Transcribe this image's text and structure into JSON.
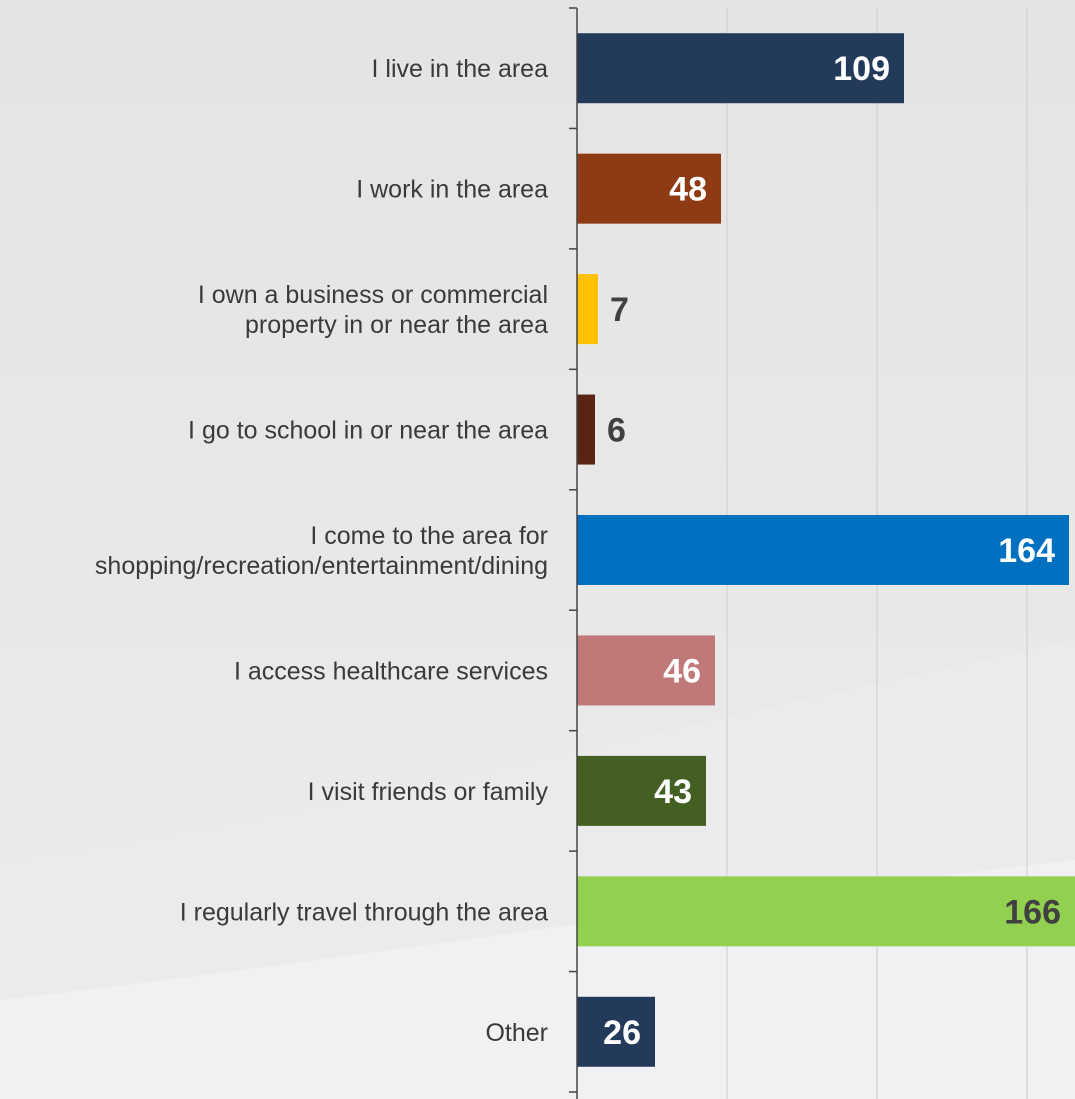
{
  "chart_data": {
    "type": "bar",
    "orientation": "horizontal",
    "categories": [
      [
        "I live in the area"
      ],
      [
        "I work in the area"
      ],
      [
        "I own a business or commercial",
        "property in or near the area"
      ],
      [
        "I go to school in or near the area"
      ],
      [
        "I come to the area for",
        "shopping/recreation/entertainment/dining"
      ],
      [
        "I access healthcare services"
      ],
      [
        "I visit friends or family"
      ],
      [
        "I regularly travel through the area"
      ],
      [
        "Other"
      ]
    ],
    "values": [
      109,
      48,
      7,
      6,
      164,
      46,
      43,
      166,
      26
    ],
    "bar_colors": [
      "#243a5a",
      "#8e3a12",
      "#ffc000",
      "#5a2412",
      "#0070c0",
      "#c07878",
      "#436022",
      "#92d050",
      "#243a5a"
    ],
    "label_colors": [
      "#ffffff",
      "#ffffff",
      "#404040",
      "#404040",
      "#ffffff",
      "#ffffff",
      "#ffffff",
      "#404040",
      "#ffffff"
    ],
    "label_position": [
      "inside",
      "inside",
      "outside",
      "outside",
      "inside",
      "inside",
      "inside",
      "inside",
      "inside"
    ],
    "xlim": [
      0,
      166
    ],
    "grid": true,
    "gridline_values": [
      50,
      100,
      150
    ]
  }
}
